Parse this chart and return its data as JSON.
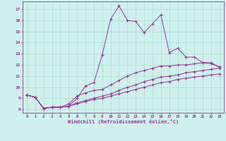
{
  "xlabel": "Windchill (Refroidissement éolien,°C)",
  "background_color": "#cff0ee",
  "grid_color": "#aaddcc",
  "line_color": "#993399",
  "xlim": [
    -0.5,
    23.5
  ],
  "ylim": [
    7.7,
    17.7
  ],
  "xticks": [
    0,
    1,
    2,
    3,
    4,
    5,
    6,
    7,
    8,
    9,
    10,
    11,
    12,
    13,
    14,
    15,
    16,
    17,
    18,
    19,
    20,
    21,
    22,
    23
  ],
  "yticks": [
    8,
    9,
    10,
    11,
    12,
    13,
    14,
    15,
    16,
    17
  ],
  "lines": [
    {
      "x": [
        0,
        1,
        2,
        3,
        4,
        5,
        6,
        7,
        8,
        9,
        10,
        11,
        12,
        13,
        14,
        15,
        16,
        17,
        18,
        19,
        20,
        21,
        22,
        23
      ],
      "y": [
        9.3,
        9.1,
        8.1,
        8.2,
        8.2,
        8.3,
        9.0,
        10.1,
        10.4,
        12.9,
        16.1,
        17.3,
        16.0,
        15.9,
        14.9,
        15.7,
        16.5,
        13.1,
        13.5,
        12.7,
        12.7,
        12.2,
        12.1,
        11.8
      ]
    },
    {
      "x": [
        0,
        1,
        2,
        3,
        4,
        5,
        6,
        7,
        8,
        9,
        10,
        11,
        12,
        13,
        14,
        15,
        16,
        17,
        18,
        19,
        20,
        21,
        22,
        23
      ],
      "y": [
        9.3,
        9.1,
        8.1,
        8.2,
        8.2,
        8.5,
        9.2,
        9.5,
        9.7,
        9.8,
        10.2,
        10.6,
        11.0,
        11.3,
        11.5,
        11.7,
        11.9,
        11.9,
        12.0,
        12.0,
        12.1,
        12.2,
        12.2,
        11.8
      ]
    },
    {
      "x": [
        0,
        1,
        2,
        3,
        4,
        5,
        6,
        7,
        8,
        9,
        10,
        11,
        12,
        13,
        14,
        15,
        16,
        17,
        18,
        19,
        20,
        21,
        22,
        23
      ],
      "y": [
        9.3,
        9.1,
        8.1,
        8.2,
        8.2,
        8.3,
        8.6,
        8.8,
        9.0,
        9.2,
        9.4,
        9.7,
        10.0,
        10.2,
        10.5,
        10.7,
        10.9,
        11.0,
        11.1,
        11.3,
        11.4,
        11.5,
        11.6,
        11.7
      ]
    },
    {
      "x": [
        0,
        1,
        2,
        3,
        4,
        5,
        6,
        7,
        8,
        9,
        10,
        11,
        12,
        13,
        14,
        15,
        16,
        17,
        18,
        19,
        20,
        21,
        22,
        23
      ],
      "y": [
        9.3,
        9.1,
        8.1,
        8.2,
        8.2,
        8.3,
        8.5,
        8.7,
        8.9,
        9.0,
        9.2,
        9.4,
        9.6,
        9.8,
        10.0,
        10.2,
        10.4,
        10.5,
        10.7,
        10.8,
        10.9,
        11.0,
        11.1,
        11.2
      ]
    }
  ]
}
